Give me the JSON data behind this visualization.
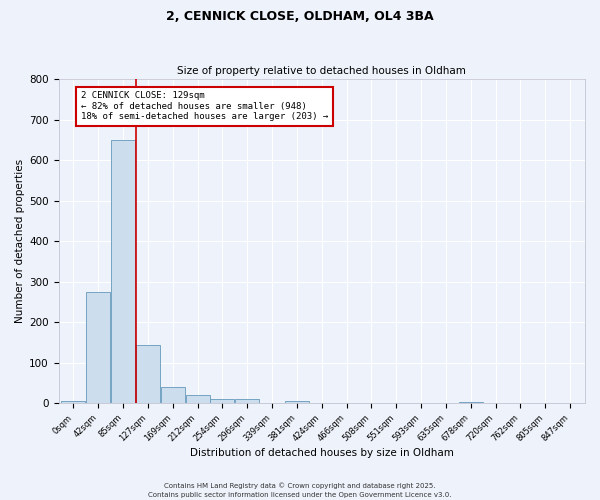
{
  "title1": "2, CENNICK CLOSE, OLDHAM, OL4 3BA",
  "title2": "Size of property relative to detached houses in Oldham",
  "xlabel": "Distribution of detached houses by size in Oldham",
  "ylabel": "Number of detached properties",
  "bin_labels": [
    "0sqm",
    "42sqm",
    "85sqm",
    "127sqm",
    "169sqm",
    "212sqm",
    "254sqm",
    "296sqm",
    "339sqm",
    "381sqm",
    "424sqm",
    "466sqm",
    "508sqm",
    "551sqm",
    "593sqm",
    "635sqm",
    "678sqm",
    "720sqm",
    "762sqm",
    "805sqm",
    "847sqm"
  ],
  "bar_values": [
    5,
    275,
    650,
    143,
    40,
    20,
    10,
    10,
    0,
    5,
    0,
    0,
    0,
    0,
    0,
    0,
    3,
    0,
    0,
    0,
    0
  ],
  "bar_color": "#ccdded",
  "bar_edge_color": "#6699bb",
  "background_color": "#eef2fa",
  "grid_color": "#ffffff",
  "vline_color": "#cc0000",
  "annotation_box_text": "2 CENNICK CLOSE: 129sqm\n← 82% of detached houses are smaller (948)\n18% of semi-detached houses are larger (203) →",
  "annotation_box_color": "#cc0000",
  "annotation_box_bg": "#ffffff",
  "ylim": [
    0,
    800
  ],
  "yticks": [
    0,
    100,
    200,
    300,
    400,
    500,
    600,
    700,
    800
  ],
  "footer1": "Contains HM Land Registry data © Crown copyright and database right 2025.",
  "footer2": "Contains public sector information licensed under the Open Government Licence v3.0."
}
